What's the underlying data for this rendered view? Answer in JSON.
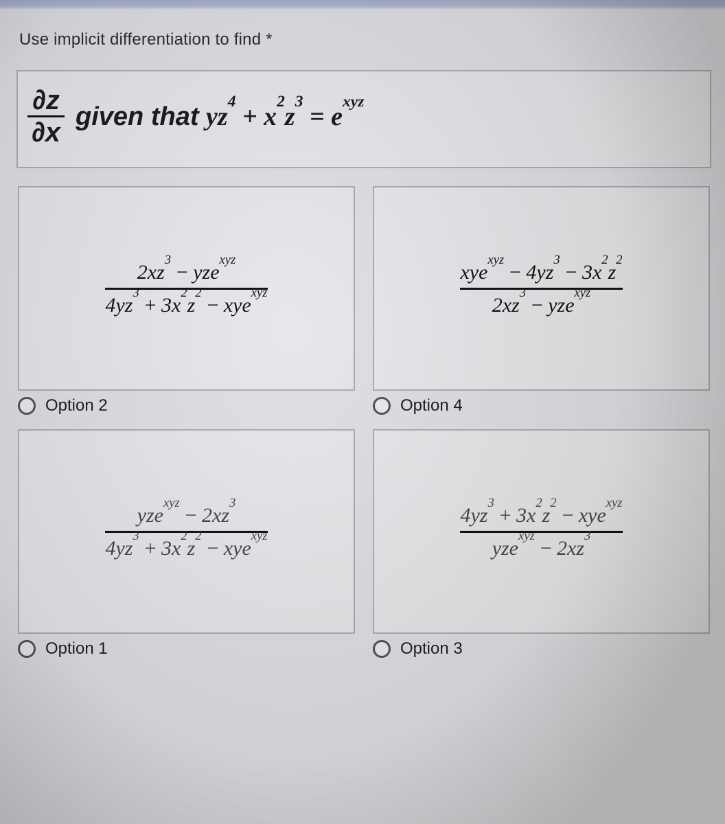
{
  "prompt": "Use implicit differentiation to find *",
  "given": {
    "lhs_num": "∂z",
    "lhs_den": "∂x",
    "text": "given that",
    "rhs": "yz⁴ + x²z³ = eˣʸᶻ"
  },
  "options": [
    {
      "label": "Option 2",
      "num": "2xz³ − yzeˣʸᶻ",
      "den": "4yz³ + 3x²z² − xyeˣʸᶻ"
    },
    {
      "label": "Option 4",
      "num": "xyeˣʸᶻ − 4yz³ − 3x²z²",
      "den": "2xz³ − yzeˣʸᶻ"
    },
    {
      "label": "Option 1",
      "num": "yzeˣʸᶻ − 2xz³",
      "den": "4yz³ + 3x²z² − xyeˣʸᶻ"
    },
    {
      "label": "Option 3",
      "num": "4yz³ + 3x²z² − xyeˣʸᶻ",
      "den": "yzeˣʸᶻ − 2xz³"
    }
  ],
  "colors": {
    "border": "#a8a8ac",
    "text": "#1a1a1a"
  }
}
